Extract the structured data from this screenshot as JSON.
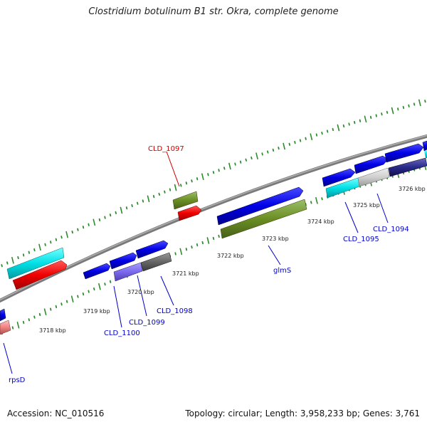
{
  "title": "Clostridium botulinum B1 str. Okra, complete genome",
  "footer": {
    "accession": "Accession: NC_010516",
    "summary": "Topology: circular; Length: 3,958,233 bp; Genes: 3,761"
  },
  "colors": {
    "backbone": "#8c8c8c",
    "tick": "#2e8b2e",
    "forward_label": "#cc0000",
    "reverse_label": "#0000cc"
  },
  "kbp_labels": [
    "3718 kbp",
    "3719 kbp",
    "3720 kbp",
    "3721 kbp",
    "3722 kbp",
    "3723 kbp",
    "3724 kbp",
    "3725 kbp",
    "3726 kbp"
  ],
  "gene_labels": {
    "cld_1097": "CLD_1097",
    "rpsd": "rpsD",
    "cld_1100": "CLD_1100",
    "cld_1099": "CLD_1099",
    "cld_1098": "CLD_1098",
    "glms": "glmS",
    "cld_1095": "CLD_1095",
    "cld_1094": "CLD_1094"
  }
}
